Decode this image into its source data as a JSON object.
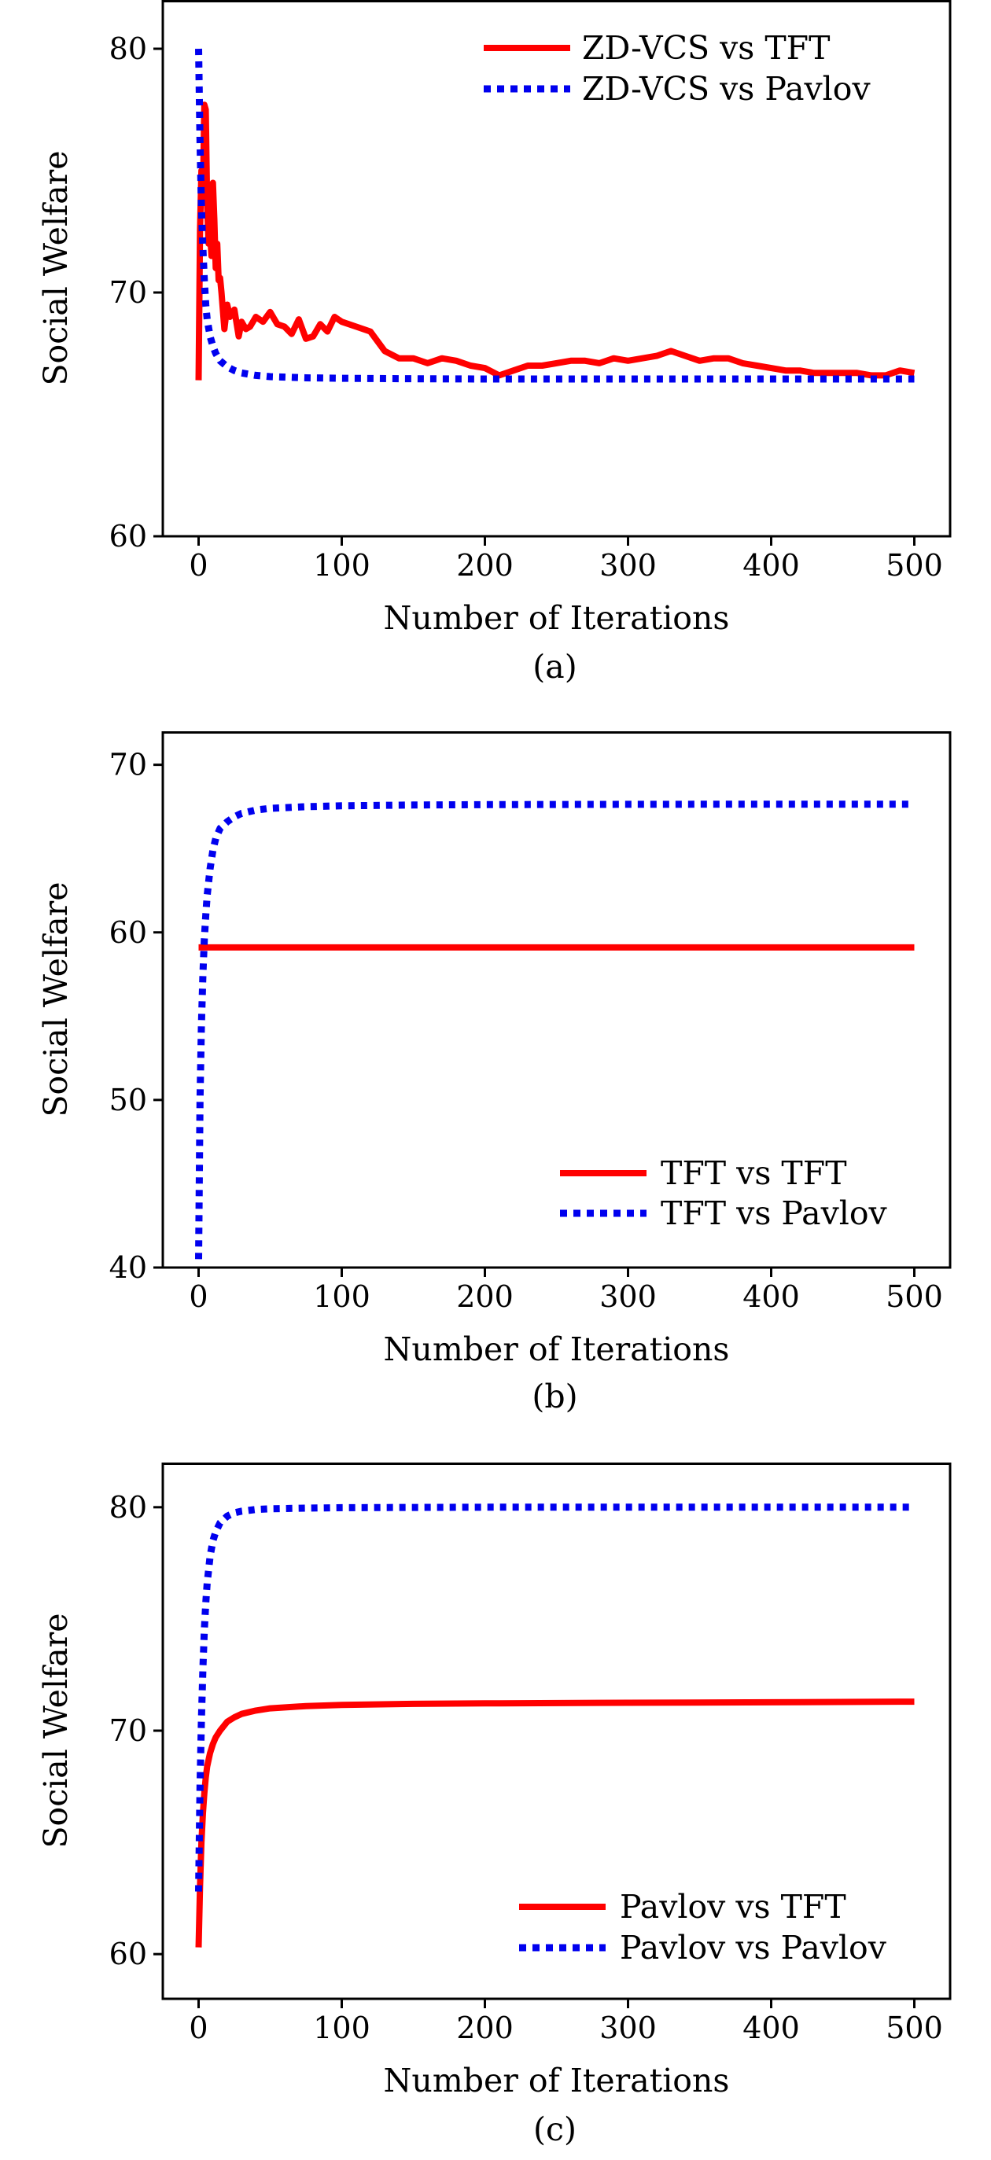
{
  "chart_data": [
    {
      "type": "line",
      "panel_label": "(a)",
      "xlabel": "Number of Iterations",
      "ylabel": "Social Welfare",
      "xlim": [
        -25,
        525
      ],
      "ylim": [
        60,
        82
      ],
      "xticks": [
        0,
        100,
        200,
        300,
        400,
        500
      ],
      "yticks": [
        60,
        70,
        80
      ],
      "legend_position": "top-right",
      "series": [
        {
          "name": "ZD-VCS vs TFT",
          "color": "#ff0000",
          "style": "solid",
          "x": [
            0,
            1,
            2,
            3,
            4,
            5,
            6,
            7,
            8,
            9,
            10,
            11,
            12,
            13,
            14,
            15,
            16,
            18,
            20,
            22,
            25,
            28,
            30,
            33,
            36,
            40,
            45,
            50,
            55,
            60,
            65,
            70,
            75,
            80,
            85,
            90,
            95,
            100,
            110,
            120,
            130,
            140,
            150,
            160,
            170,
            180,
            190,
            200,
            210,
            220,
            230,
            240,
            250,
            260,
            270,
            280,
            290,
            300,
            310,
            320,
            330,
            340,
            350,
            360,
            370,
            380,
            390,
            400,
            410,
            420,
            430,
            440,
            450,
            460,
            470,
            480,
            490,
            500
          ],
          "values": [
            66.4,
            72.5,
            75,
            74,
            77.7,
            77.5,
            73.5,
            72,
            72.5,
            71.5,
            74.5,
            73,
            71,
            72,
            70.5,
            70.6,
            70,
            68.5,
            69.5,
            69,
            69.3,
            68.2,
            68.8,
            68.5,
            68.6,
            69,
            68.8,
            69.2,
            68.7,
            68.6,
            68.3,
            68.9,
            68.1,
            68.2,
            68.7,
            68.4,
            69,
            68.8,
            68.6,
            68.4,
            67.6,
            67.3,
            67.3,
            67.1,
            67.3,
            67.2,
            67,
            66.9,
            66.6,
            66.8,
            67,
            67,
            67.1,
            67.2,
            67.2,
            67.1,
            67.3,
            67.2,
            67.3,
            67.4,
            67.6,
            67.4,
            67.2,
            67.3,
            67.3,
            67.1,
            67,
            66.9,
            66.8,
            66.8,
            66.7,
            66.7,
            66.7,
            66.7,
            66.6,
            66.6,
            66.8,
            66.7
          ]
        },
        {
          "name": "ZD-VCS vs Pavlov",
          "color": "#0000ee",
          "style": "dotted",
          "x": [
            0,
            1,
            2,
            3,
            4,
            5,
            6,
            8,
            10,
            12,
            15,
            20,
            25,
            30,
            40,
            50,
            75,
            100,
            150,
            200,
            300,
            400,
            500
          ],
          "values": [
            80,
            76.2,
            73.5,
            71.8,
            70.5,
            69.5,
            68.9,
            68.2,
            67.8,
            67.5,
            67.2,
            66.95,
            66.8,
            66.7,
            66.6,
            66.55,
            66.5,
            66.48,
            66.46,
            66.45,
            66.45,
            66.45,
            66.45
          ]
        }
      ]
    },
    {
      "type": "line",
      "panel_label": "(b)",
      "xlabel": "Number of Iterations",
      "ylabel": "Social Welfare",
      "xlim": [
        -25,
        525
      ],
      "ylim": [
        40,
        72
      ],
      "xticks": [
        0,
        100,
        200,
        300,
        400,
        500
      ],
      "yticks": [
        40,
        50,
        60,
        70
      ],
      "legend_position": "lower-right",
      "series": [
        {
          "name": "TFT vs TFT",
          "color": "#ff0000",
          "style": "solid",
          "x": [
            0,
            500
          ],
          "values": [
            59.1,
            59.1
          ]
        },
        {
          "name": "TFT vs Pavlov",
          "color": "#0000ee",
          "style": "dotted",
          "x": [
            0,
            1,
            2,
            3,
            4,
            5,
            6,
            8,
            10,
            12,
            15,
            20,
            25,
            30,
            40,
            50,
            75,
            100,
            150,
            200,
            300,
            400,
            500
          ],
          "values": [
            40.5,
            50,
            54.5,
            57.5,
            59.6,
            61,
            62.2,
            63.8,
            64.9,
            65.6,
            66.2,
            66.6,
            66.9,
            67.1,
            67.3,
            67.4,
            67.5,
            67.55,
            67.6,
            67.62,
            67.64,
            67.65,
            67.65
          ]
        }
      ]
    },
    {
      "type": "line",
      "panel_label": "(c)",
      "xlabel": "Number of Iterations",
      "ylabel": "Social Welfare",
      "xlim": [
        -25,
        525
      ],
      "ylim": [
        58,
        82
      ],
      "xticks": [
        0,
        100,
        200,
        300,
        400,
        500
      ],
      "yticks": [
        60,
        70,
        80
      ],
      "legend_position": "lower-right",
      "series": [
        {
          "name": "Pavlov vs TFT",
          "color": "#ff0000",
          "style": "solid",
          "x": [
            0,
            1,
            2,
            3,
            4,
            5,
            6,
            8,
            10,
            12,
            15,
            20,
            25,
            30,
            40,
            50,
            75,
            100,
            150,
            200,
            300,
            400,
            500
          ],
          "values": [
            60.3,
            63,
            65,
            66.3,
            67.2,
            67.9,
            68.4,
            69,
            69.4,
            69.7,
            70,
            70.4,
            70.6,
            70.75,
            70.9,
            71,
            71.1,
            71.15,
            71.2,
            71.22,
            71.25,
            71.27,
            71.3
          ]
        },
        {
          "name": "Pavlov vs Pavlov",
          "color": "#0000ee",
          "style": "dotted",
          "x": [
            0,
            1,
            2,
            3,
            4,
            5,
            6,
            8,
            10,
            12,
            15,
            20,
            25,
            30,
            40,
            50,
            75,
            100,
            150,
            200,
            300,
            400,
            500
          ],
          "values": [
            62.8,
            67.5,
            70.5,
            72.8,
            74.5,
            75.7,
            76.6,
            77.8,
            78.5,
            78.9,
            79.3,
            79.6,
            79.75,
            79.82,
            79.9,
            79.93,
            79.96,
            79.98,
            79.99,
            80,
            80,
            80,
            80
          ]
        }
      ]
    }
  ]
}
